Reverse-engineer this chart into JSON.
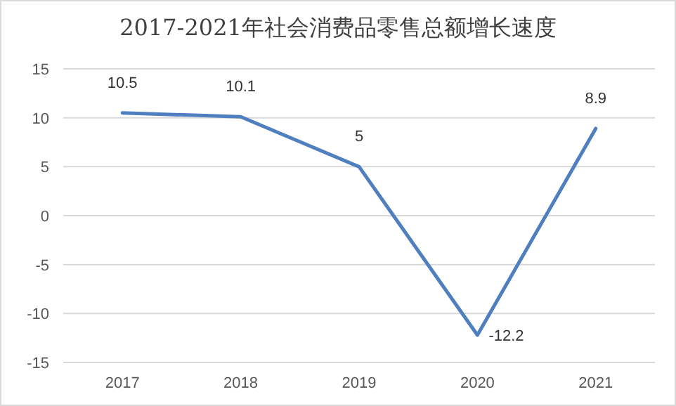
{
  "chart_data": {
    "type": "line",
    "title": "2017-2021年社会消费品零售总额增长速度",
    "categories": [
      "2017",
      "2018",
      "2019",
      "2020",
      "2021"
    ],
    "series": [
      {
        "color": "#4f7fbf",
        "values": [
          10.5,
          10.1,
          5,
          -12.2,
          8.9
        ]
      }
    ],
    "ylim": [
      -15,
      15
    ],
    "yticks": [
      -15,
      -10,
      -5,
      0,
      5,
      10,
      15
    ],
    "grid": "y",
    "data_labels": true,
    "marker": "none",
    "line_style": "solid"
  }
}
